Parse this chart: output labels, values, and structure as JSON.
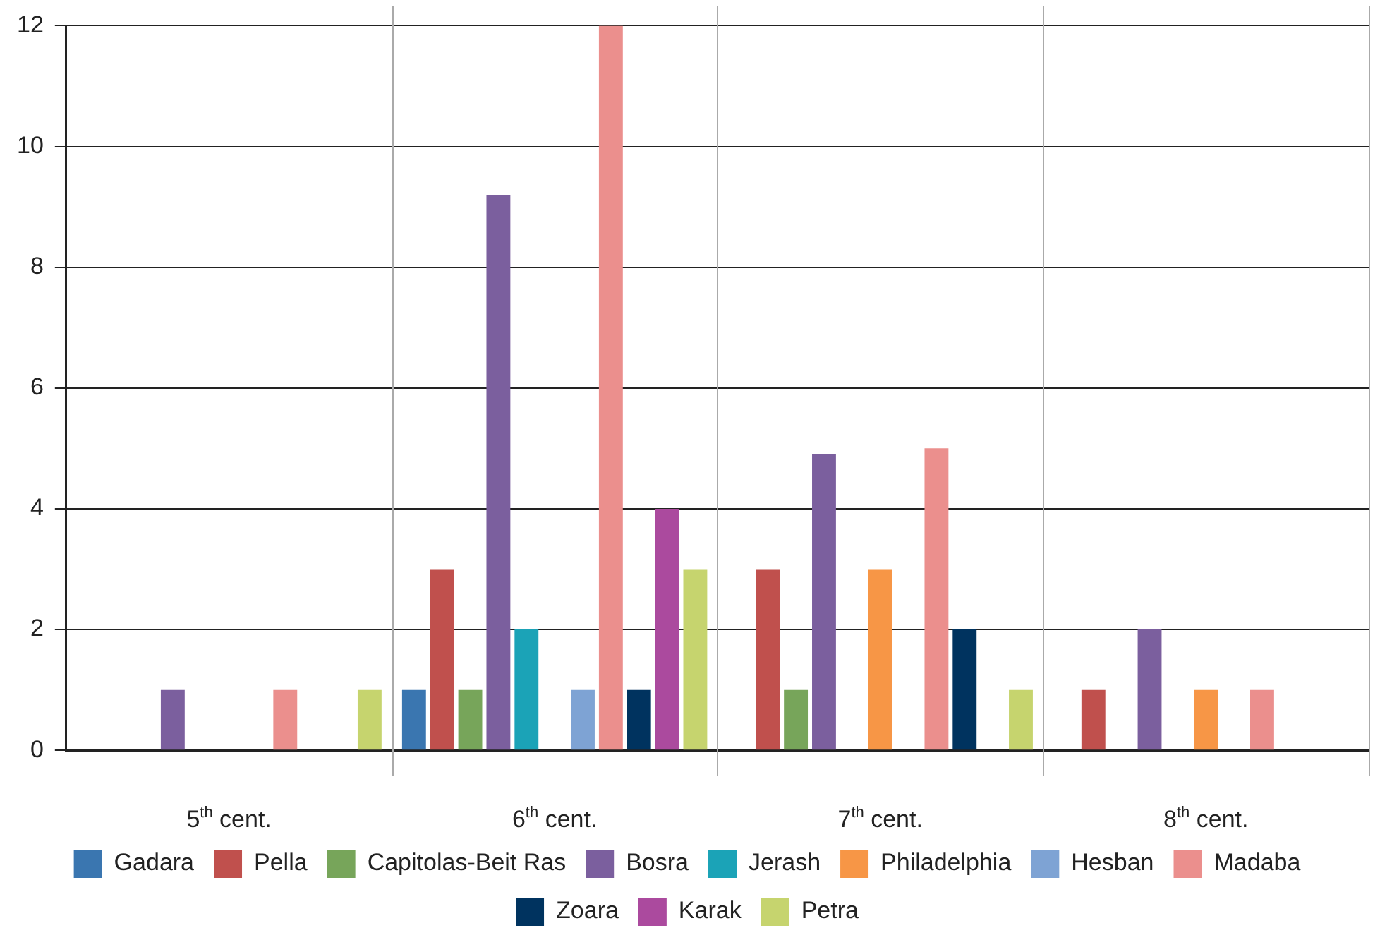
{
  "chart_data": {
    "type": "bar",
    "categories": [
      "5$^{th}$ cent.",
      "6$^{th}$ cent.",
      "7$^{th}$ cent.",
      "8$^{th}$ cent."
    ],
    "series": [
      {
        "name": "Gadara",
        "color": "#3a76b0",
        "values": [
          0,
          1,
          0,
          0
        ]
      },
      {
        "name": "Pella",
        "color": "#c0504d",
        "values": [
          0,
          3,
          3,
          1
        ]
      },
      {
        "name": "Capitolas-Beit Ras",
        "color": "#77a55a",
        "values": [
          0,
          1,
          1,
          0
        ]
      },
      {
        "name": "Bosra",
        "color": "#7b5f9e",
        "values": [
          1,
          9.2,
          4.9,
          2
        ]
      },
      {
        "name": "Jerash",
        "color": "#1ba3b7",
        "values": [
          0,
          2,
          0,
          0
        ]
      },
      {
        "name": "Philadelphia",
        "color": "#f79646",
        "values": [
          0,
          0,
          3,
          1
        ]
      },
      {
        "name": "Hesban",
        "color": "#7ea3d4",
        "values": [
          0,
          1,
          0,
          0
        ]
      },
      {
        "name": "Madaba",
        "color": "#eb8f8d",
        "values": [
          1,
          12,
          5,
          1
        ]
      },
      {
        "name": "Zoara",
        "color": "#00335f",
        "values": [
          0,
          1,
          2,
          0
        ]
      },
      {
        "name": "Karak",
        "color": "#ab4a9e",
        "values": [
          0,
          4,
          0,
          0
        ]
      },
      {
        "name": "Petra",
        "color": "#c6d46e",
        "values": [
          1,
          3,
          1,
          0
        ]
      }
    ],
    "ylim": [
      0,
      12
    ],
    "yticks": [
      0,
      2,
      4,
      6,
      8,
      10,
      12
    ],
    "grid": true,
    "legend": "bottom"
  }
}
